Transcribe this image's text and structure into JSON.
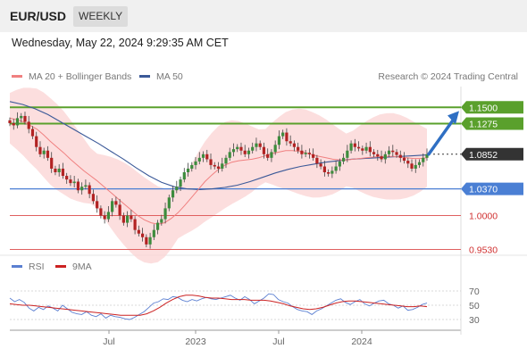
{
  "header": {
    "symbol": "EUR/USD",
    "period": "WEEKLY"
  },
  "timestamp": "Wednesday, May 22, 2024 9:29:35 AM CET",
  "legend": {
    "ma20_label": "MA 20 + Bollinger Bands",
    "ma50_label": "MA 50",
    "copyright": "Research © 2024 Trading Central",
    "rsi_label": "RSI",
    "rsi_ma_label": "9MA"
  },
  "colors": {
    "ma20": "#f08080",
    "ma50": "#3b5998",
    "bollinger_fill": "#fbd3d3",
    "candle_up": "#3d8c3d",
    "candle_down": "#b22222",
    "resistance": "#5aa02c",
    "support_blue": "#4a7fd4",
    "support_red": "#e06060",
    "arrow": "#2f6fc3",
    "rsi": "#5b7fd1",
    "rsi_ma": "#cc2222",
    "price_tag": "#333333"
  },
  "chart_data": [
    {
      "type": "candlestick",
      "title": "EUR/USD",
      "period": "WEEKLY",
      "x_ticks": [
        "Jul",
        "2023",
        "Jul",
        "2024"
      ],
      "y_range": [
        0.94,
        1.18
      ],
      "current_price": 1.0852,
      "levels": [
        {
          "value": 1.15,
          "label": "1.1500",
          "kind": "resistance"
        },
        {
          "value": 1.1275,
          "label": "1.1275",
          "kind": "resistance"
        },
        {
          "value": 1.085,
          "label": "1.0852",
          "kind": "current"
        },
        {
          "value": 1.037,
          "label": "1.0370",
          "kind": "support"
        },
        {
          "value": 1.0,
          "label": "1.0000",
          "kind": "support"
        },
        {
          "value": 0.953,
          "label": "0.9530",
          "kind": "support"
        }
      ],
      "close_path": [
        1.128,
        1.125,
        1.135,
        1.138,
        1.13,
        1.12,
        1.11,
        1.095,
        1.085,
        1.09,
        1.08,
        1.065,
        1.06,
        1.065,
        1.055,
        1.05,
        1.045,
        1.047,
        1.035,
        1.04,
        1.042,
        1.03,
        1.02,
        1.01,
        1.0,
        0.995,
        1.005,
        1.02,
        1.015,
        1.0,
        0.99,
        1.0,
        0.995,
        0.98,
        0.975,
        0.97,
        0.96,
        0.97,
        0.98,
        0.99,
        0.995,
        1.01,
        1.025,
        1.035,
        1.04,
        1.05,
        1.06,
        1.065,
        1.07,
        1.075,
        1.08,
        1.085,
        1.078,
        1.07,
        1.068,
        1.065,
        1.072,
        1.08,
        1.088,
        1.092,
        1.095,
        1.09,
        1.085,
        1.09,
        1.095,
        1.1,
        1.095,
        1.085,
        1.08,
        1.088,
        1.098,
        1.11,
        1.115,
        1.103,
        1.1,
        1.095,
        1.09,
        1.085,
        1.087,
        1.085,
        1.08,
        1.072,
        1.068,
        1.06,
        1.058,
        1.062,
        1.068,
        1.075,
        1.08,
        1.09,
        1.1,
        1.095,
        1.093,
        1.09,
        1.095,
        1.088,
        1.085,
        1.082,
        1.078,
        1.085,
        1.09,
        1.088,
        1.084,
        1.08,
        1.076,
        1.072,
        1.065,
        1.07,
        1.074,
        1.08,
        1.085
      ],
      "ma20_path": [
        1.135,
        1.133,
        1.13,
        1.125,
        1.12,
        1.112,
        1.103,
        1.095,
        1.087,
        1.078,
        1.07,
        1.062,
        1.055,
        1.048,
        1.04,
        1.032,
        1.024,
        1.016,
        1.008,
        1.0,
        0.994,
        0.99,
        0.988,
        0.99,
        0.996,
        1.004,
        1.014,
        1.025,
        1.036,
        1.047,
        1.056,
        1.064,
        1.07,
        1.074,
        1.076,
        1.077,
        1.078,
        1.08,
        1.083,
        1.086,
        1.088,
        1.09,
        1.09,
        1.089,
        1.087,
        1.084,
        1.082,
        1.08,
        1.078,
        1.077,
        1.077,
        1.078,
        1.079,
        1.08,
        1.081,
        1.082,
        1.082,
        1.082,
        1.081,
        1.08,
        1.079,
        1.079,
        1.08
      ],
      "ma50_path": [
        1.158,
        1.154,
        1.148,
        1.14,
        1.13,
        1.12,
        1.11,
        1.1,
        1.089,
        1.078,
        1.066,
        1.055,
        1.046,
        1.04,
        1.037,
        1.036,
        1.037,
        1.039,
        1.042,
        1.047,
        1.053,
        1.059,
        1.064,
        1.068,
        1.071,
        1.074,
        1.076,
        1.078,
        1.079,
        1.08,
        1.081,
        1.082,
        1.083,
        1.084
      ],
      "forecast_arrow": {
        "from": 1.085,
        "to": 1.14
      }
    },
    {
      "type": "line",
      "title": "RSI",
      "y_ticks": [
        70,
        50,
        30
      ],
      "y_range": [
        20,
        80
      ],
      "series": [
        {
          "name": "RSI",
          "values": [
            60,
            55,
            58,
            54,
            46,
            42,
            47,
            44,
            49,
            46,
            42,
            50,
            45,
            40,
            38,
            37,
            41,
            36,
            34,
            38,
            32,
            36,
            34,
            33,
            31,
            30,
            33,
            37,
            41,
            47,
            53,
            55,
            59,
            58,
            62,
            61,
            57,
            55,
            58,
            56,
            59,
            61,
            59,
            58,
            60,
            62,
            64,
            60,
            57,
            62,
            58,
            52,
            56,
            60,
            66,
            65,
            58,
            55,
            53,
            48,
            44,
            42,
            41,
            37,
            42,
            45,
            49,
            53,
            57,
            59,
            54,
            51,
            55,
            58,
            52,
            49,
            53,
            56,
            57,
            52,
            50,
            46,
            49,
            43,
            44,
            47,
            51,
            53
          ]
        },
        {
          "name": "9MA",
          "values": [
            52,
            51,
            50,
            50,
            49,
            48,
            47,
            46,
            45,
            44,
            43,
            42,
            41,
            40,
            39,
            38,
            37,
            36,
            36,
            36,
            36,
            38,
            42,
            47,
            53,
            58,
            62,
            64,
            64,
            63,
            61,
            60,
            60,
            59,
            58,
            58,
            58,
            57,
            57,
            57,
            56,
            54,
            52,
            49,
            47,
            45,
            44,
            45,
            47,
            50,
            53,
            55,
            56,
            56,
            55,
            54,
            53,
            52,
            51,
            50,
            49,
            48,
            48,
            49,
            48
          ]
        }
      ]
    }
  ]
}
